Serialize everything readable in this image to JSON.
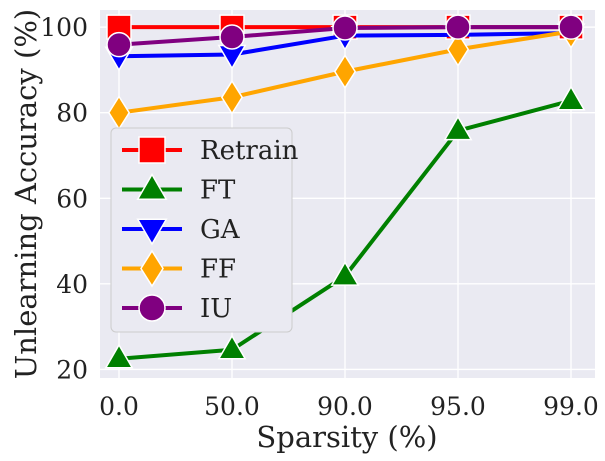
{
  "chart_data": {
    "type": "line",
    "title": "",
    "xlabel": "Sparsity (%)",
    "ylabel": "Unlearning Accuracy (%)",
    "categories": [
      "0.0",
      "50.0",
      "90.0",
      "95.0",
      "99.0"
    ],
    "ylim": [
      18,
      104
    ],
    "yticks": [
      20,
      40,
      60,
      80,
      100
    ],
    "grid": true,
    "legend_position": "center-left",
    "series": [
      {
        "name": "Retrain",
        "color": "#ff0000",
        "marker": "square",
        "values": [
          100.0,
          100.0,
          100.0,
          100.0,
          100.0
        ]
      },
      {
        "name": "FT",
        "color": "#008000",
        "marker": "triangle-up",
        "values": [
          22.5,
          24.6,
          41.8,
          75.8,
          82.8
        ]
      },
      {
        "name": "GA",
        "color": "#0000ff",
        "marker": "triangle-down",
        "values": [
          93.2,
          93.6,
          98.0,
          98.2,
          98.6
        ]
      },
      {
        "name": "FF",
        "color": "#ffa500",
        "marker": "diamond",
        "values": [
          80.0,
          83.6,
          89.6,
          94.8,
          99.0
        ]
      },
      {
        "name": "IU",
        "color": "#800080",
        "marker": "circle",
        "values": [
          95.9,
          97.7,
          99.8,
          100.0,
          100.0
        ]
      }
    ]
  }
}
